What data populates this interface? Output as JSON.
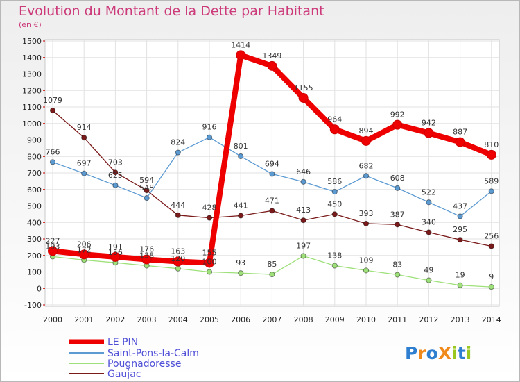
{
  "chart_data": {
    "type": "line",
    "title": "Evolution du Montant de la Dette par Habitant",
    "subtitle": "(en €)",
    "x": [
      "2000",
      "2001",
      "2002",
      "2003",
      "2004",
      "2005",
      "2006",
      "2007",
      "2008",
      "2009",
      "2010",
      "2011",
      "2012",
      "2013",
      "2014"
    ],
    "ylim": [
      -100,
      1500
    ],
    "yticks": [
      -100,
      0,
      100,
      200,
      300,
      400,
      500,
      600,
      700,
      800,
      900,
      1000,
      1100,
      1200,
      1300,
      1400,
      1500
    ],
    "grid": true,
    "legend_position": "bottom-left",
    "series": [
      {
        "name": "Gaujac",
        "color": "#7a1a1a",
        "values": [
          1079,
          914,
          703,
          594,
          444,
          428,
          441,
          471,
          413,
          450,
          393,
          387,
          340,
          295,
          256
        ],
        "labels": [
          "1079",
          "914",
          "703",
          "594",
          "444",
          "428",
          "441",
          "471",
          "413",
          "450",
          "393",
          "387",
          "340",
          "295",
          "256"
        ]
      },
      {
        "name": "Saint-Pons-la-Calm",
        "color": "#5c9ad2",
        "values": [
          766,
          697,
          625,
          548,
          824,
          916,
          801,
          694,
          646,
          586,
          682,
          608,
          522,
          437,
          589
        ],
        "labels": [
          "766",
          "697",
          "625",
          "548",
          "824",
          "916",
          "801",
          "694",
          "646",
          "586",
          "682",
          "608",
          "522",
          "437",
          "589"
        ]
      },
      {
        "name": "Pougnadoresse",
        "color": "#9ee07a",
        "values": [
          193,
          172,
          156,
          138,
          120,
          100,
          93,
          85,
          197,
          138,
          109,
          83,
          49,
          19,
          9
        ],
        "labels": [
          "193",
          "172",
          "156",
          "138",
          "120",
          "100",
          "93",
          "85",
          "197",
          "138",
          "109",
          "83",
          "49",
          "19",
          "9"
        ]
      },
      {
        "name": "LE PIN",
        "color": "#ee0000",
        "values": [
          227,
          206,
          191,
          176,
          163,
          155,
          1414,
          1349,
          1155,
          964,
          894,
          992,
          942,
          887,
          810
        ],
        "labels": [
          "227",
          "206",
          "191",
          "176",
          "163",
          "155",
          "1414",
          "1349",
          "1155",
          "964",
          "894",
          "992",
          "942",
          "887",
          "810"
        ]
      }
    ]
  },
  "legend": {
    "items": [
      "LE PIN",
      "Saint-Pons-la-Calm",
      "Pougnadoresse",
      "Gaujac"
    ]
  },
  "logo": {
    "text": "ProXiti"
  }
}
